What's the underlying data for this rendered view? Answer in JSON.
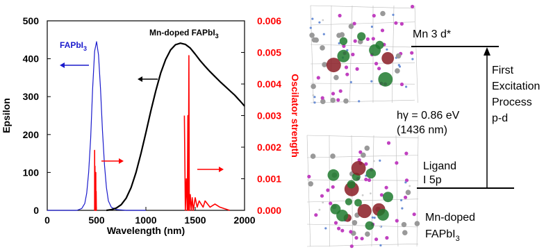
{
  "chart_data": {
    "type": "line",
    "xlabel": "Wavelength (nm)",
    "ylabel": "Epsilon",
    "y2label": "Oscilator strength",
    "xlim": [
      0,
      2000
    ],
    "ylim": [
      0,
      500
    ],
    "y2lim": [
      0,
      0.006
    ],
    "x_ticks": [
      "0",
      "500",
      "1000",
      "1500",
      "2000"
    ],
    "y_ticks": [
      "0",
      "100",
      "200",
      "300",
      "400",
      "500"
    ],
    "y2_ticks": [
      "0.000",
      "0.001",
      "0.002",
      "0.003",
      "0.004",
      "0.005",
      "0.006"
    ],
    "grid": false,
    "series": [
      {
        "name": "FAPbI3",
        "axis": "left",
        "color": "#1a1acc",
        "x": [
          0,
          300,
          350,
          380,
          400,
          420,
          440,
          460,
          480,
          500,
          520,
          540,
          560,
          580,
          600,
          620,
          650,
          700,
          800,
          1000
        ],
        "y": [
          0,
          0,
          5,
          18,
          45,
          100,
          190,
          320,
          420,
          445,
          410,
          320,
          210,
          120,
          60,
          25,
          8,
          2,
          0,
          0
        ]
      },
      {
        "name": "Mn-doped FAPbI3",
        "axis": "left",
        "color": "#000000",
        "x": [
          600,
          650,
          700,
          750,
          800,
          850,
          900,
          950,
          1000,
          1050,
          1100,
          1150,
          1200,
          1250,
          1300,
          1350,
          1400,
          1450,
          1500,
          1550,
          1600,
          1650,
          1700,
          1750,
          1800,
          1850,
          1900,
          1950,
          2000
        ],
        "y": [
          0,
          2,
          6,
          15,
          32,
          60,
          100,
          150,
          205,
          262,
          315,
          362,
          398,
          423,
          437,
          441,
          438,
          428,
          412,
          395,
          380,
          366,
          353,
          340,
          328,
          316,
          304,
          290,
          275
        ]
      },
      {
        "name": "FAPbI3 oscillator strength",
        "axis": "right",
        "color": "#ff0000",
        "x": [
          480,
          480,
          482,
          484,
          486,
          488,
          490,
          492,
          494,
          496,
          498,
          500
        ],
        "y": [
          0,
          0.0019,
          0,
          0.0014,
          0,
          0.001,
          0,
          0.0012,
          0,
          0.0006,
          0,
          0
        ]
      },
      {
        "name": "Mn-doped FAPbI3 oscillator strength",
        "axis": "right",
        "color": "#ff0000",
        "x": [
          1390,
          1400,
          1410,
          1420,
          1425,
          1430,
          1436,
          1440,
          1450,
          1460,
          1470,
          1480,
          1490,
          1500,
          1520,
          1540,
          1560,
          1580,
          1600,
          1650,
          1700,
          1750,
          1800,
          1850
        ],
        "y": [
          0.003,
          0,
          0.001,
          0,
          0.003,
          0,
          0.0049,
          0,
          0.0005,
          0,
          0.0004,
          0,
          0.0002,
          0.0004,
          0.0001,
          0.0003,
          0.0002,
          0.0001,
          0.0003,
          0.0001,
          0.0002,
          0.0001,
          5e-05,
          0
        ]
      }
    ],
    "labels": {
      "fapbi3": {
        "base": "FAPbI",
        "sub": "3"
      },
      "mn_fapbi3": {
        "base": "Mn-doped FAPbI",
        "sub": "3"
      }
    }
  },
  "diagram": {
    "upper_level": "Mn 3 d*",
    "lower_level_line1": "Ligand",
    "lower_level_line2": "I 5p",
    "energy_line1": "hγ = 0.86 eV",
    "energy_line2": "(1436 nm)",
    "process_lines": [
      "First",
      "Excitation",
      "Process",
      "p-d"
    ],
    "caption_line1": "Mn-doped",
    "caption_line2_base": "FAPbI",
    "caption_line2_sub": "3"
  },
  "colors": {
    "left_axis": "#000000",
    "right_axis": "#ff0000",
    "fapbi3_curve": "#1a1acc",
    "mn_curve": "#000000",
    "osc": "#ff0000"
  }
}
